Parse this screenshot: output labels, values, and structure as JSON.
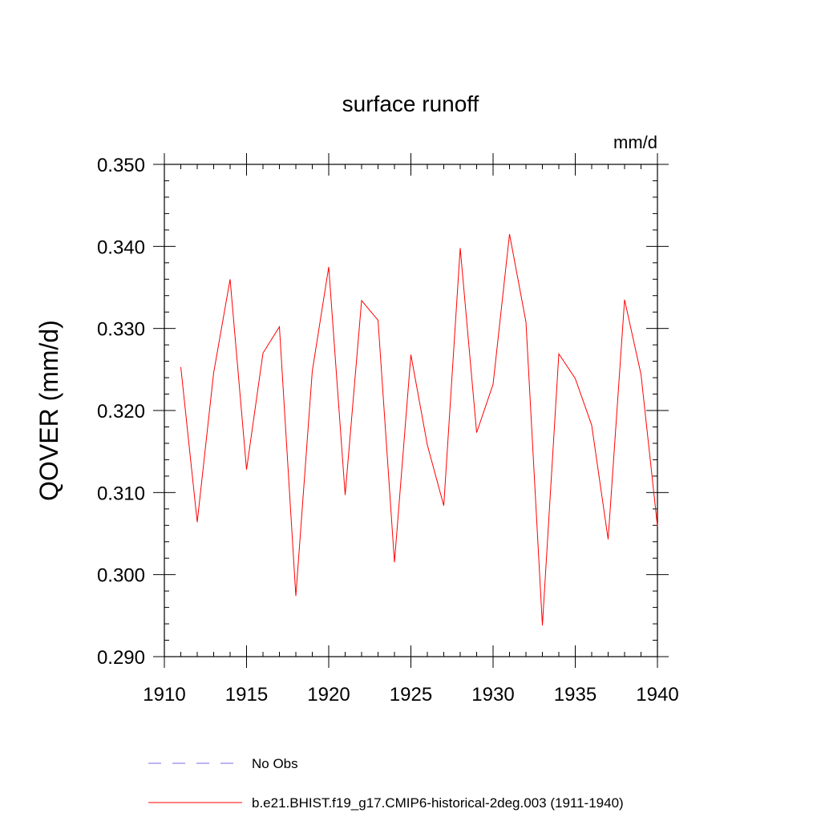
{
  "chart_data": {
    "type": "line",
    "title": "surface runoff",
    "units": "mm/d",
    "xlabel": "",
    "ylabel": "QOVER  (mm/d)",
    "xlim": [
      1910,
      1940
    ],
    "ylim": [
      0.29,
      0.35
    ],
    "x_ticks": [
      1910,
      1915,
      1920,
      1925,
      1930,
      1935,
      1940
    ],
    "x_tick_labels": [
      "1910",
      "1915",
      "1920",
      "1925",
      "1930",
      "1935",
      "1940"
    ],
    "y_ticks": [
      0.29,
      0.3,
      0.31,
      0.32,
      0.33,
      0.34,
      0.35
    ],
    "y_tick_labels": [
      "0.290",
      "0.300",
      "0.310",
      "0.320",
      "0.330",
      "0.340",
      "0.350"
    ],
    "grid": false,
    "legend_position": "bottom",
    "series": [
      {
        "name": "b.e21.BHIST.f19_g17.CMIP6-historical-2deg.003 (1911-1940)",
        "color": "#ff0000",
        "style": "solid",
        "x": [
          1911,
          1912,
          1913,
          1914,
          1915,
          1916,
          1917,
          1918,
          1919,
          1920,
          1921,
          1922,
          1923,
          1924,
          1925,
          1926,
          1927,
          1928,
          1929,
          1930,
          1931,
          1932,
          1933,
          1934,
          1935,
          1936,
          1937,
          1938,
          1939,
          1940
        ],
        "values": [
          0.3253,
          0.3064,
          0.3246,
          0.336,
          0.3128,
          0.327,
          0.3302,
          0.2974,
          0.3248,
          0.3375,
          0.3097,
          0.3334,
          0.331,
          0.3015,
          0.3268,
          0.3158,
          0.3084,
          0.3398,
          0.3173,
          0.3232,
          0.3415,
          0.3308,
          0.2938,
          0.3269,
          0.3239,
          0.3182,
          0.3043,
          0.3335,
          0.3244,
          0.3059
        ]
      }
    ],
    "legend": [
      {
        "label": "No Obs",
        "color": "#7b68ee",
        "style": "dashed"
      },
      {
        "label": "b.e21.BHIST.f19_g17.CMIP6-historical-2deg.003 (1911-1940)",
        "color": "#ff0000",
        "style": "solid"
      }
    ]
  }
}
